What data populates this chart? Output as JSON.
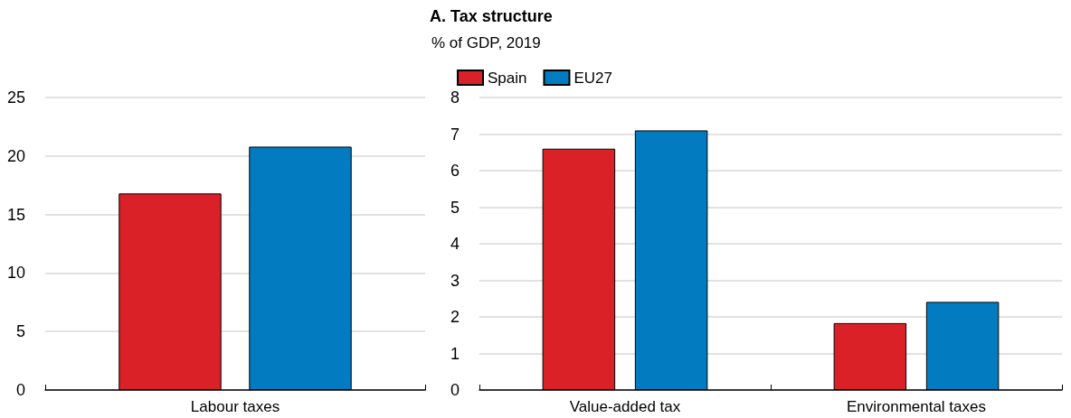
{
  "chart_data": [
    {
      "type": "bar",
      "categories": [
        "Labour taxes"
      ],
      "series": [
        {
          "color": "#da2128",
          "values": [
            16.8
          ]
        },
        {
          "color": "#037bc1",
          "values": [
            20.8
          ]
        }
      ],
      "ylim": [
        0,
        25
      ],
      "yticks": [
        0,
        5,
        10,
        15,
        20,
        25
      ],
      "grid": "y",
      "legend": false
    },
    {
      "type": "bar",
      "title": "A. Tax structure",
      "subtitle": "% of GDP, 2019",
      "categories": [
        "Value-added tax",
        "Environmental taxes"
      ],
      "series": [
        {
          "name": "Spain",
          "color": "#da2128",
          "values": [
            6.6,
            1.83
          ]
        },
        {
          "name": "EU27",
          "color": "#037bc1",
          "values": [
            7.1,
            2.41
          ]
        }
      ],
      "ylim": [
        0,
        8
      ],
      "yticks": [
        0,
        1,
        2,
        3,
        4,
        5,
        6,
        7,
        8
      ],
      "grid": "y",
      "legend": "top left"
    }
  ]
}
